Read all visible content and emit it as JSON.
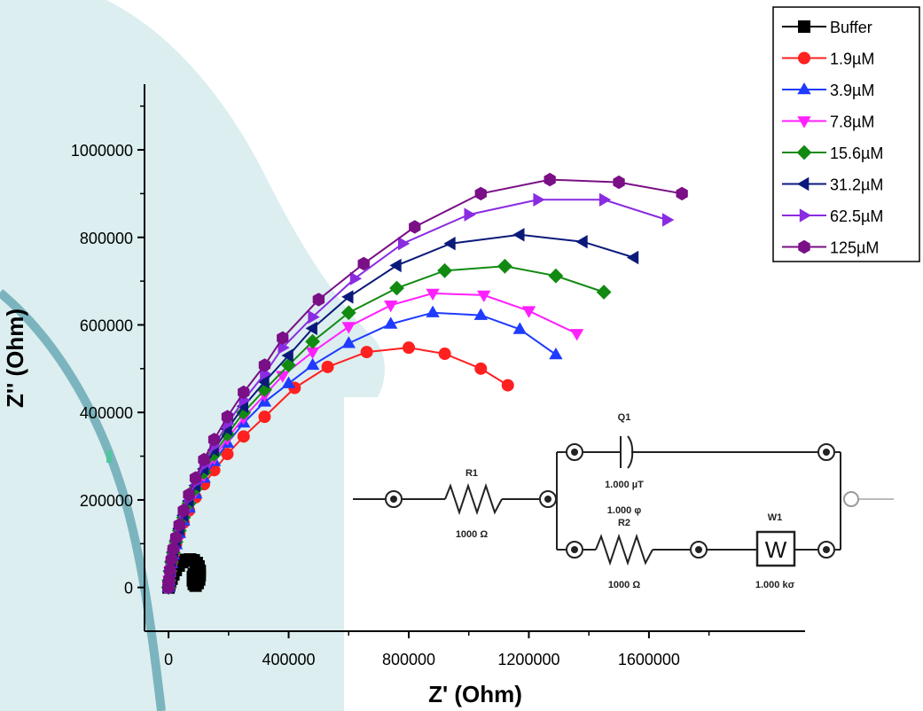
{
  "chart_data": {
    "type": "scatter",
    "title": "",
    "xlabel": "Z' (Ohm)",
    "ylabel": "Z'' (Ohm)",
    "xlim": [
      -80000,
      2120000
    ],
    "ylim": [
      -100000,
      1150000
    ],
    "x_ticks": [
      0,
      400000,
      800000,
      1200000,
      1600000
    ],
    "x_tick_labels": [
      "0",
      "400000",
      "800000",
      "1200000",
      "1600000"
    ],
    "y_ticks": [
      0,
      200000,
      400000,
      600000,
      800000,
      1000000
    ],
    "y_tick_labels": [
      "0",
      "200000",
      "400000",
      "600000",
      "800000",
      "1000000"
    ],
    "legend_position": "top-right",
    "grid": false,
    "series": [
      {
        "name": "Buffer",
        "color": "#000000",
        "marker": "square",
        "x": [
          0,
          2000,
          5000,
          10000,
          16000,
          24000,
          34000,
          46000,
          58000,
          72000,
          84000,
          94000,
          100000,
          104000,
          104000,
          102000,
          97000,
          90000,
          84000,
          81000,
          81000,
          84000,
          90000,
          97000
        ],
        "y": [
          0,
          5000,
          12000,
          20000,
          30000,
          40000,
          50000,
          58000,
          63000,
          64000,
          62000,
          56000,
          48000,
          38000,
          28000,
          18000,
          10000,
          4000,
          8000,
          16000,
          24000,
          30000,
          34000,
          36000
        ]
      },
      {
        "name": "1.9µM",
        "color": "#ff2020",
        "marker": "circle",
        "x": [
          0,
          2000,
          5000,
          10000,
          16000,
          25000,
          36000,
          50000,
          68000,
          90000,
          118000,
          152000,
          196000,
          250000,
          320000,
          420000,
          530000,
          660000,
          800000,
          920000,
          1040000,
          1130000
        ],
        "y": [
          0,
          15000,
          35000,
          55000,
          75000,
          98000,
          122000,
          148000,
          176000,
          206000,
          236000,
          268000,
          305000,
          345000,
          390000,
          456000,
          504000,
          538000,
          548000,
          534000,
          500000,
          462000
        ]
      },
      {
        "name": "3.9µM",
        "color": "#1f3bff",
        "marker": "triangle-up",
        "x": [
          0,
          2000,
          5000,
          10000,
          16000,
          25000,
          36000,
          50000,
          68000,
          90000,
          118000,
          152000,
          196000,
          250000,
          320000,
          400000,
          480000,
          600000,
          740000,
          880000,
          1040000,
          1170000,
          1290000
        ],
        "y": [
          0,
          15000,
          35000,
          55000,
          75000,
          98000,
          124000,
          152000,
          182000,
          214000,
          250000,
          288000,
          330000,
          376000,
          424000,
          466000,
          508000,
          558000,
          602000,
          628000,
          622000,
          590000,
          532000
        ]
      },
      {
        "name": "7.8µM",
        "color": "#ff20ff",
        "marker": "triangle-down",
        "x": [
          0,
          2000,
          5000,
          10000,
          16000,
          25000,
          36000,
          50000,
          68000,
          90000,
          118000,
          152000,
          196000,
          250000,
          320000,
          380000,
          480000,
          600000,
          740000,
          880000,
          1050000,
          1200000,
          1360000
        ],
        "y": [
          0,
          16000,
          36000,
          57000,
          78000,
          101000,
          127000,
          156000,
          187000,
          220000,
          256000,
          296000,
          340000,
          388000,
          440000,
          484000,
          538000,
          596000,
          645000,
          672000,
          668000,
          632000,
          580000
        ]
      },
      {
        "name": "15.6µM",
        "color": "#118a11",
        "marker": "diamond",
        "x": [
          0,
          2000,
          5000,
          10000,
          16000,
          25000,
          36000,
          50000,
          68000,
          90000,
          118000,
          152000,
          196000,
          250000,
          320000,
          400000,
          480000,
          600000,
          760000,
          920000,
          1120000,
          1290000,
          1450000
        ],
        "y": [
          0,
          16000,
          37000,
          58000,
          80000,
          104000,
          130000,
          160000,
          192000,
          226000,
          263000,
          304000,
          350000,
          400000,
          452000,
          508000,
          562000,
          628000,
          684000,
          724000,
          734000,
          712000,
          675000
        ]
      },
      {
        "name": "31.2µM",
        "color": "#0b1a7a",
        "marker": "triangle-left",
        "x": [
          0,
          2000,
          5000,
          10000,
          16000,
          25000,
          36000,
          50000,
          68000,
          90000,
          118000,
          152000,
          196000,
          250000,
          320000,
          400000,
          480000,
          600000,
          760000,
          940000,
          1170000,
          1380000,
          1550000
        ],
        "y": [
          0,
          17000,
          38000,
          60000,
          82000,
          107000,
          134000,
          165000,
          198000,
          233000,
          271000,
          314000,
          362000,
          414000,
          470000,
          530000,
          592000,
          664000,
          736000,
          786000,
          806000,
          790000,
          754000
        ]
      },
      {
        "name": "62.5µM",
        "color": "#8a2be2",
        "marker": "triangle-right",
        "x": [
          0,
          2000,
          5000,
          10000,
          16000,
          25000,
          36000,
          50000,
          68000,
          90000,
          118000,
          152000,
          196000,
          250000,
          320000,
          380000,
          480000,
          620000,
          780000,
          1000000,
          1230000,
          1450000,
          1660000
        ],
        "y": [
          0,
          17000,
          39000,
          62000,
          85000,
          110000,
          138000,
          170000,
          204000,
          240000,
          280000,
          324000,
          374000,
          428000,
          488000,
          548000,
          618000,
          706000,
          786000,
          852000,
          886000,
          886000,
          840000
        ]
      },
      {
        "name": "125µM",
        "color": "#7a0f86",
        "marker": "hexagon",
        "x": [
          0,
          2000,
          5000,
          10000,
          16000,
          25000,
          36000,
          50000,
          68000,
          90000,
          118000,
          152000,
          196000,
          250000,
          320000,
          380000,
          500000,
          650000,
          820000,
          1040000,
          1270000,
          1500000,
          1710000
        ],
        "y": [
          0,
          18000,
          40000,
          64000,
          88000,
          114000,
          143000,
          176000,
          212000,
          250000,
          292000,
          338000,
          390000,
          446000,
          508000,
          570000,
          658000,
          740000,
          824000,
          900000,
          932000,
          926000,
          900000
        ]
      }
    ]
  },
  "circuit": {
    "r1": {
      "name": "R1",
      "value": "1000  Ω"
    },
    "q1": {
      "name": "Q1",
      "value1": "1.000 µT",
      "value2": "1.000  φ"
    },
    "r2": {
      "name": "R2",
      "value": "1000  Ω"
    },
    "w1": {
      "name": "W1",
      "symbol": "W",
      "value": "1.000 kσ"
    }
  },
  "background_colors": {
    "stain": "#bfe0e2",
    "curve": "#6aa9b6",
    "spot": "#4cc69a"
  }
}
